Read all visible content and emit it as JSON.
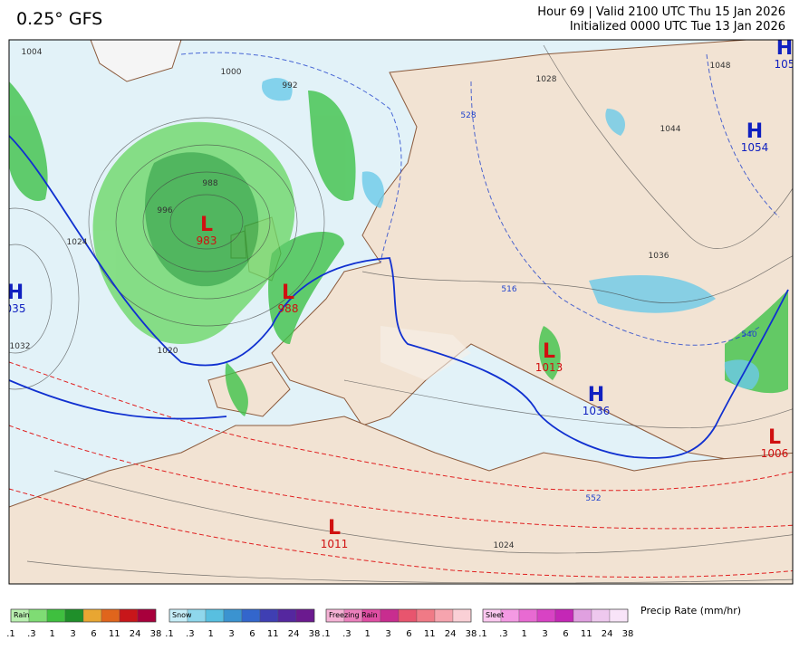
{
  "header": {
    "title": "0.25° GFS",
    "valid": "Hour 69 | Valid 2100 UTC Thu 15 Jan 2026",
    "init": "Initialized 0000 UTC Tue 13 Jan 2026"
  },
  "pressure_centers": [
    {
      "symbol": "L",
      "value": "983"
    },
    {
      "symbol": "L",
      "value": "988"
    },
    {
      "symbol": "H",
      "value": "035"
    },
    {
      "symbol": "H",
      "value": "1054"
    },
    {
      "symbol": "H",
      "value": "105"
    },
    {
      "symbol": "L",
      "value": "1013"
    },
    {
      "symbol": "H",
      "value": "1036"
    },
    {
      "symbol": "L",
      "value": "1006"
    },
    {
      "symbol": "L",
      "value": "1011"
    }
  ],
  "contour_labels": [
    "1004",
    "1000",
    "992",
    "988",
    "996",
    "1024",
    "1032",
    "1020",
    "1048",
    "1044",
    "1036",
    "528",
    "516",
    "540",
    "552",
    "1024",
    "1028"
  ],
  "legend": {
    "title": "Precip Rate (mm/hr)",
    "groups": [
      {
        "name": "Rain",
        "colors": [
          "#b9f0b0",
          "#7fdc74",
          "#3fbf3f",
          "#1f8f2a",
          "#e8a632",
          "#e0651c",
          "#c8161a",
          "#a8003c"
        ]
      },
      {
        "name": "Snow",
        "colors": [
          "#c6eef8",
          "#8fd7ec",
          "#58bfe0",
          "#3b93d0",
          "#3366cc",
          "#3f3fb3",
          "#55279f",
          "#6b1a8f"
        ]
      },
      {
        "name": "Freezing Rain",
        "colors": [
          "#f6b3d6",
          "#ec80bd",
          "#e04ea4",
          "#c82d8f",
          "#e8556e",
          "#f07a86",
          "#f6a4ae",
          "#fad0d6"
        ]
      },
      {
        "name": "Sleet",
        "colors": [
          "#fbc8f0",
          "#f49ae3",
          "#e86ad2",
          "#d843c4",
          "#c427b6",
          "#e0a0e0",
          "#eec8ee",
          "#f8e4f8"
        ]
      }
    ],
    "ticks": [
      ".1",
      ".3",
      "1",
      "3",
      "6",
      "11",
      "24",
      "38"
    ]
  }
}
